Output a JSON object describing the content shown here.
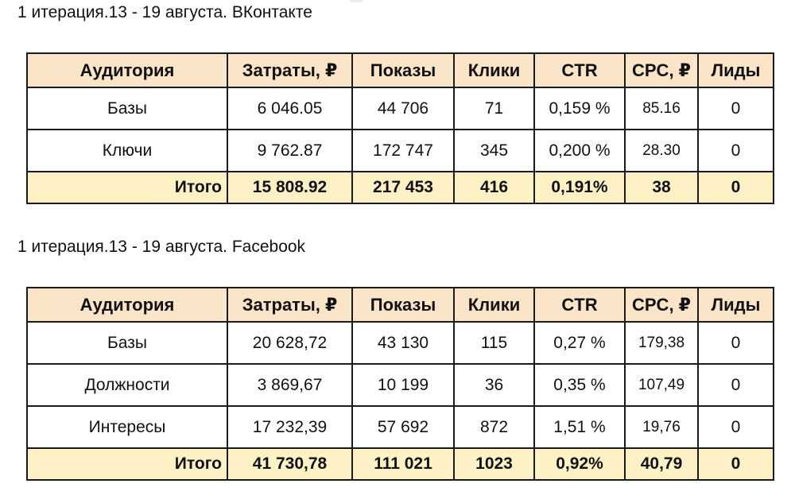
{
  "vk": {
    "title": "1 итерация.13 - 19 августа. ВКонтакте",
    "headers": [
      "Аудитория",
      "Затраты, ₽",
      "Показы",
      "Клики",
      "CTR",
      "CPC, ₽",
      "Лиды"
    ],
    "rows": [
      [
        "Базы",
        "6 046.05",
        "44 706",
        "71",
        "0,159 %",
        "85.16",
        "0"
      ],
      [
        "Ключи",
        "9 762.87",
        "172 747",
        "345",
        "0,200 %",
        "28.30",
        "0"
      ]
    ],
    "total": [
      "Итого",
      "15 808.92",
      "217 453",
      "416",
      "0,191%",
      "38",
      "0"
    ]
  },
  "fb": {
    "title": "1 итерация.13 - 19 августа. Facebook",
    "headers": [
      "Аудитория",
      "Затраты, ₽",
      "Показы",
      "Клики",
      "CTR",
      "CPC, ₽",
      "Лиды"
    ],
    "rows": [
      [
        "Базы",
        "20 628,72",
        "43 130",
        "115",
        "0,27 %",
        "179,38",
        "0"
      ],
      [
        "Должности",
        "3 869,67",
        "10 199",
        "36",
        "0,35 %",
        "107,49",
        "0"
      ],
      [
        "Интересы",
        "17 232,39",
        "57 692",
        "872",
        "1,51 %",
        "19,76",
        "0"
      ]
    ],
    "total": [
      "Итого",
      "41 730,78",
      "111 021",
      "1023",
      "0,92%",
      "40,79",
      "0"
    ]
  },
  "colors": {
    "header_bg": "#fbe5c8",
    "total_bg": "#fdf1c5",
    "border": "#1a1a1a"
  }
}
